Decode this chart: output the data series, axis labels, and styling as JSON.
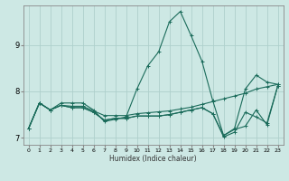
{
  "xlabel": "Humidex (Indice chaleur)",
  "ylabel": "",
  "bg_color": "#cde8e4",
  "grid_color": "#aed0cc",
  "line_color": "#1a6b5a",
  "xlim": [
    -0.5,
    23.5
  ],
  "ylim": [
    6.85,
    9.85
  ],
  "yticks": [
    7,
    8,
    9
  ],
  "xticks": [
    0,
    1,
    2,
    3,
    4,
    5,
    6,
    7,
    8,
    9,
    10,
    11,
    12,
    13,
    14,
    15,
    16,
    17,
    18,
    19,
    20,
    21,
    22,
    23
  ],
  "series": [
    [
      7.2,
      7.75,
      7.6,
      7.75,
      7.75,
      7.75,
      7.6,
      7.35,
      7.4,
      7.45,
      8.05,
      8.55,
      8.85,
      9.5,
      9.72,
      9.2,
      8.65,
      7.8,
      7.05,
      7.2,
      8.05,
      8.35,
      8.2,
      8.15
    ],
    [
      7.2,
      7.75,
      7.6,
      7.7,
      7.68,
      7.68,
      7.58,
      7.48,
      7.48,
      7.48,
      7.52,
      7.54,
      7.56,
      7.58,
      7.62,
      7.66,
      7.72,
      7.78,
      7.84,
      7.9,
      7.96,
      8.05,
      8.1,
      8.15
    ],
    [
      7.2,
      7.75,
      7.6,
      7.7,
      7.65,
      7.65,
      7.55,
      7.38,
      7.42,
      7.42,
      7.47,
      7.47,
      7.47,
      7.5,
      7.55,
      7.6,
      7.65,
      7.52,
      7.05,
      7.18,
      7.25,
      7.6,
      7.28,
      8.12
    ],
    [
      7.2,
      7.75,
      7.6,
      7.7,
      7.65,
      7.65,
      7.55,
      7.38,
      7.42,
      7.42,
      7.47,
      7.47,
      7.47,
      7.5,
      7.55,
      7.6,
      7.65,
      7.52,
      7.02,
      7.12,
      7.55,
      7.45,
      7.32,
      8.12
    ]
  ],
  "marker": "+"
}
